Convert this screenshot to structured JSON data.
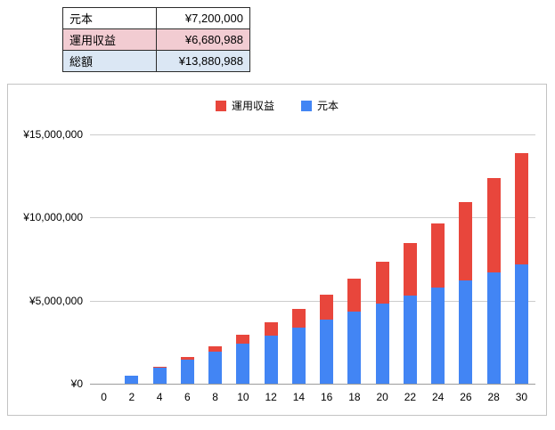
{
  "summary": {
    "rows": [
      {
        "label": "元本",
        "value": "¥7,200,000"
      },
      {
        "label": "運用収益",
        "value": "¥6,680,988"
      },
      {
        "label": "総額",
        "value": "¥13,880,988"
      }
    ],
    "row_colors": {
      "returns": "#f2ccd2",
      "total": "#dbe7f4"
    }
  },
  "chart_data": {
    "type": "bar",
    "stacked": true,
    "title": "",
    "xlabel": "",
    "ylabel": "",
    "grid": true,
    "legend": {
      "position": "top",
      "entries": [
        "運用収益",
        "元本"
      ]
    },
    "categories": [
      "0",
      "2",
      "4",
      "6",
      "8",
      "10",
      "12",
      "14",
      "16",
      "18",
      "20",
      "22",
      "24",
      "26",
      "28",
      "30"
    ],
    "series": [
      {
        "name": "元本",
        "color": "#4285f4",
        "values": [
          0,
          480000,
          960000,
          1440000,
          1920000,
          2400000,
          2880000,
          3360000,
          3840000,
          4320000,
          4800000,
          5280000,
          5760000,
          6240000,
          6720000,
          7200000
        ]
      },
      {
        "name": "運用収益",
        "color": "#e8463c",
        "values": [
          0,
          19000,
          79000,
          185000,
          338000,
          545000,
          809000,
          1134000,
          1527000,
          1992000,
          2536000,
          3165000,
          3885000,
          4706000,
          5635000,
          6680988
        ]
      }
    ],
    "ylim": [
      0,
      15000000
    ],
    "y_ticks": [
      {
        "label": "¥0",
        "value": 0
      },
      {
        "label": "¥5,000,000",
        "value": 5000000
      },
      {
        "label": "¥10,000,000",
        "value": 10000000
      },
      {
        "label": "¥15,000,000",
        "value": 15000000
      }
    ]
  }
}
